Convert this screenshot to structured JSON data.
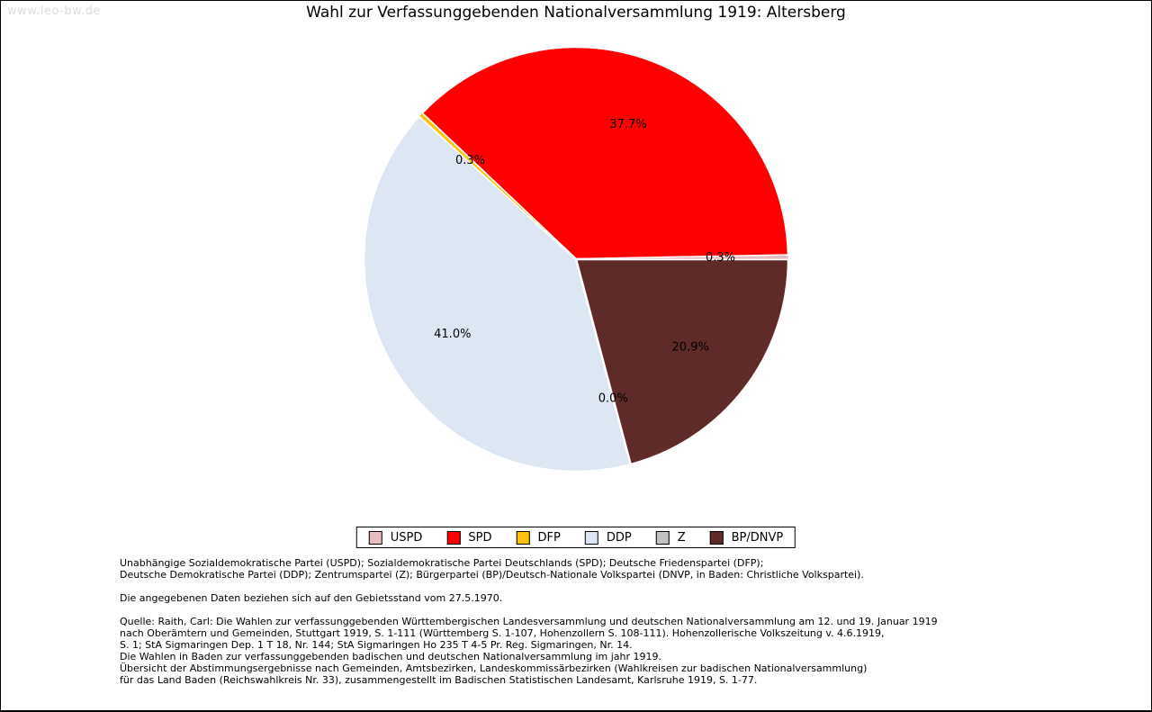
{
  "watermark": "www.leo-bw.de",
  "title": "Wahl zur Verfassunggebenden Nationalversammlung 1919: Altersberg",
  "chart_data": {
    "type": "pie",
    "title": "Wahl zur Verfassunggebenden Nationalversammlung 1919: Altersberg",
    "start_angle_deg": 0,
    "direction": "counterclockwise",
    "legend_position": "bottom-center",
    "slices": [
      {
        "name": "USPD",
        "value_pct": 0.3,
        "label": "0.3%",
        "color": "#e7bcbe"
      },
      {
        "name": "SPD",
        "value_pct": 37.7,
        "label": "37.7%",
        "color": "#ff0000"
      },
      {
        "name": "DFP",
        "value_pct": 0.3,
        "label": "0.3%",
        "color": "#ffc10a"
      },
      {
        "name": "DDP",
        "value_pct": 41.0,
        "label": "41.0%",
        "color": "#dde6f3"
      },
      {
        "name": "Z",
        "value_pct": 0.0,
        "label": "0.0%",
        "color": "#c2c2c2"
      },
      {
        "name": "BP/DNVP",
        "value_pct": 20.9,
        "label": "20.9%",
        "color": "#5f2b28"
      }
    ]
  },
  "footnotes": {
    "parties": [
      "Unabhängige Sozialdemokratische Partei (USPD); Sozialdemokratische Partei Deutschlands (SPD); Deutsche Friedenspartei (DFP);",
      "Deutsche Demokratische Partei (DDP); Zentrumspartei (Z); Bürgerpartei (BP)/Deutsch-Nationale Volkspartei (DNVP, in Baden: Christliche Volkspartei)."
    ],
    "gebietsstand": [
      "Die angegebenen Daten beziehen sich auf den Gebietsstand vom 27.5.1970."
    ],
    "quelle": [
      "Quelle: Raith, Carl: Die Wahlen zur verfassunggebenden Württembergischen Landesversammlung und deutschen Nationalversammlung am 12. und 19. Januar 1919",
      "nach Oberämtern und Gemeinden, Stuttgart 1919, S. 1-111 (Württemberg S. 1-107, Hohenzollern S. 108-111). Hohenzollerische Volkszeitung v. 4.6.1919,",
      "S. 1; StA Sigmaringen Dep. 1 T 18, Nr. 144; StA Sigmaringen Ho 235 T 4-5 Pr. Reg. Sigmaringen, Nr. 14.",
      "Die Wahlen in Baden zur verfassunggebenden badischen und deutschen Nationalversammlung im jahr 1919.",
      "Übersicht der Abstimmungsergebnisse nach Gemeinden, Amtsbezirken, Landeskommissärbezirken (Wahlkreisen zur badischen Nationalversammlung)",
      "für das Land Baden (Reichswahlkreis Nr. 33), zusammengestellt im Badischen Statistischen Landesamt, Karlsruhe 1919, S. 1-77."
    ]
  }
}
